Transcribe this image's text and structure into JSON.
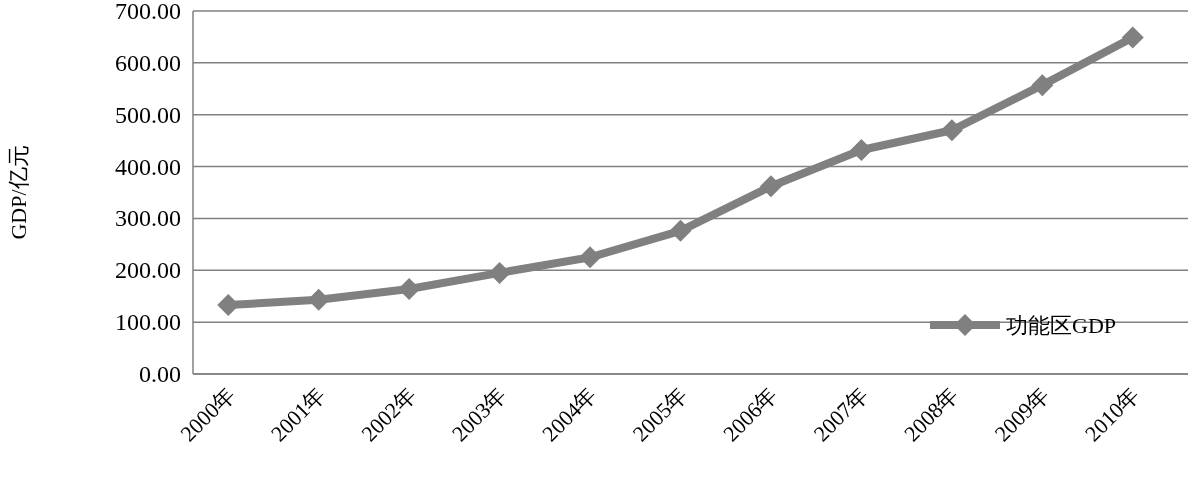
{
  "chart_data": {
    "type": "line",
    "ylabel": "GDP/亿元",
    "categories": [
      "2000年",
      "2001年",
      "2002年",
      "2003年",
      "2004年",
      "2005年",
      "2006年",
      "2007年",
      "2008年",
      "2009年",
      "2010年"
    ],
    "series": [
      {
        "name": "功能区GDP",
        "color": "#808080",
        "values": [
          133,
          143,
          164,
          195,
          225,
          276,
          362,
          432,
          470,
          557,
          649
        ]
      }
    ],
    "ylim": [
      0,
      700
    ],
    "yticks": [
      {
        "value": 0,
        "label": "0.00"
      },
      {
        "value": 100,
        "label": "100.00"
      },
      {
        "value": 200,
        "label": "200.00"
      },
      {
        "value": 300,
        "label": "300.00"
      },
      {
        "value": 400,
        "label": "400.00"
      },
      {
        "value": 500,
        "label": "500.00"
      },
      {
        "value": 600,
        "label": "600.00"
      },
      {
        "value": 700,
        "label": "700.00"
      }
    ],
    "grid": "y",
    "legend": "bottom right",
    "marker": "diamond",
    "line_style": "solid"
  }
}
